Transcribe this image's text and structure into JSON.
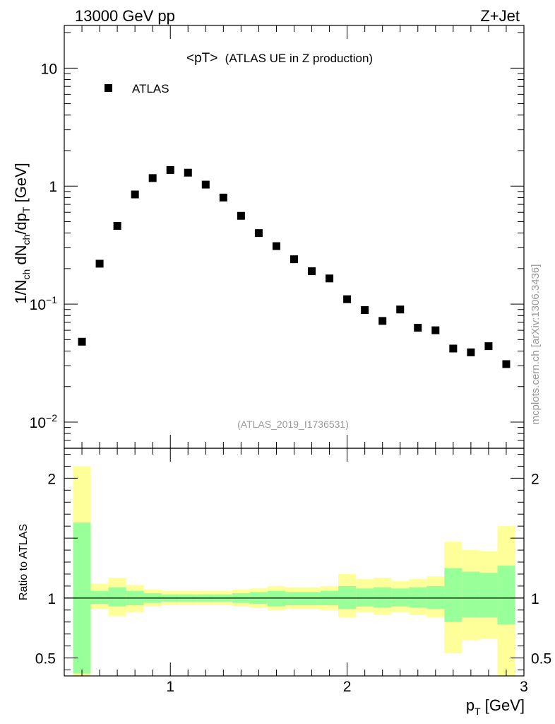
{
  "header": {
    "energy_label": "13000 GeV pp",
    "process_label": "Z+Jet"
  },
  "watermark": "mcplots.cern.ch [arXiv:1306.3436]",
  "analysis_id": "(ATLAS_2019_I1736531)",
  "colors": {
    "outer_band": "#ffff99",
    "inner_band": "#99ff99",
    "marker": "#000000"
  },
  "chart_data": [
    {
      "type": "scatter",
      "title": "<pT>",
      "subtitle": "(ATLAS UE in Z production)",
      "xlabel": "p_T [GeV]",
      "ylabel": "1/N_ch dN_ch/dp_T [GeV]",
      "yscale": "log",
      "xlim": [
        0.4,
        3.0
      ],
      "ylim": [
        0.006,
        23
      ],
      "y_ticks": [
        {
          "value": 10,
          "base": "10",
          "exp": ""
        },
        {
          "value": 1,
          "base": "1",
          "exp": ""
        },
        {
          "value": 0.1,
          "base": "10",
          "exp": "−1"
        },
        {
          "value": 0.01,
          "base": "10",
          "exp": "−2"
        }
      ],
      "legend": [
        {
          "name": "ATLAS",
          "marker": "square"
        }
      ],
      "legend_position": "top-left",
      "series": [
        {
          "name": "ATLAS",
          "x": [
            0.5,
            0.6,
            0.7,
            0.8,
            0.9,
            1.0,
            1.1,
            1.2,
            1.3,
            1.4,
            1.5,
            1.6,
            1.7,
            1.8,
            1.9,
            2.0,
            2.1,
            2.2,
            2.3,
            2.4,
            2.5,
            2.6,
            2.7,
            2.8,
            2.9
          ],
          "y": [
            0.048,
            0.22,
            0.46,
            0.85,
            1.17,
            1.37,
            1.3,
            1.03,
            0.8,
            0.56,
            0.4,
            0.31,
            0.24,
            0.19,
            0.165,
            0.11,
            0.089,
            0.072,
            0.09,
            0.063,
            0.06,
            0.042,
            0.039,
            0.044,
            0.031
          ]
        }
      ]
    },
    {
      "type": "area",
      "ylabel": "Ratio to ATLAS",
      "xlabel": "p_T [GeV]",
      "xlim": [
        0.4,
        3.0
      ],
      "ylim": [
        0.35,
        2.25
      ],
      "x_ticks": [
        1,
        2,
        3
      ],
      "y_ticks": [
        0.5,
        1,
        2
      ],
      "reference_line": 1,
      "bin_edges": [
        0.45,
        0.55,
        0.65,
        0.75,
        0.85,
        0.95,
        1.05,
        1.15,
        1.25,
        1.35,
        1.45,
        1.55,
        1.65,
        1.75,
        1.85,
        1.95,
        2.05,
        2.15,
        2.25,
        2.35,
        2.45,
        2.55,
        2.65,
        2.75,
        2.85,
        2.95
      ],
      "bands": [
        {
          "name": "outer uncertainty",
          "lower": [
            0.34,
            0.91,
            0.85,
            0.88,
            0.93,
            0.94,
            0.94,
            0.94,
            0.94,
            0.93,
            0.92,
            0.9,
            0.91,
            0.91,
            0.9,
            0.84,
            0.88,
            0.86,
            0.88,
            0.86,
            0.84,
            0.54,
            0.65,
            0.66,
            0.35
          ],
          "upper": [
            2.1,
            1.12,
            1.17,
            1.11,
            1.07,
            1.06,
            1.06,
            1.06,
            1.06,
            1.07,
            1.08,
            1.1,
            1.09,
            1.09,
            1.1,
            1.2,
            1.16,
            1.17,
            1.14,
            1.16,
            1.18,
            1.47,
            1.4,
            1.39,
            1.6
          ]
        },
        {
          "name": "inner uncertainty",
          "lower": [
            0.37,
            0.95,
            0.93,
            0.94,
            0.96,
            0.97,
            0.97,
            0.97,
            0.97,
            0.96,
            0.95,
            0.93,
            0.94,
            0.94,
            0.94,
            0.91,
            0.93,
            0.92,
            0.93,
            0.92,
            0.91,
            0.8,
            0.84,
            0.84,
            0.78
          ],
          "upper": [
            1.63,
            1.06,
            1.09,
            1.06,
            1.04,
            1.03,
            1.03,
            1.03,
            1.03,
            1.04,
            1.05,
            1.06,
            1.05,
            1.05,
            1.06,
            1.1,
            1.08,
            1.09,
            1.08,
            1.09,
            1.1,
            1.25,
            1.22,
            1.21,
            1.27
          ]
        }
      ]
    }
  ]
}
